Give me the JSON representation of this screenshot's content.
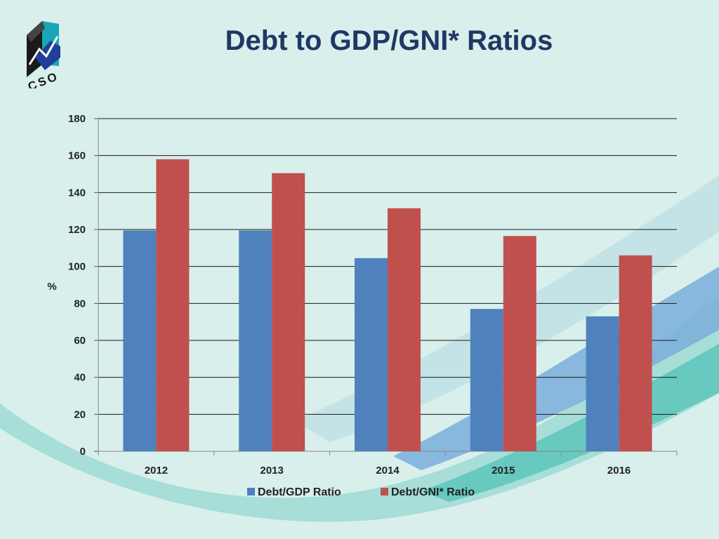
{
  "slide": {
    "title": "Debt to GDP/GNI* Ratios",
    "logo_text": "CSO"
  },
  "colors": {
    "background": "#d8efec",
    "title": "#1f3864",
    "series_gdp": "#4f81bd",
    "series_gni": "#c0504d",
    "gridline": "#1a1a1a"
  },
  "chart_data": {
    "type": "bar",
    "title": "",
    "xlabel": "",
    "ylabel": "%",
    "ylim": [
      0,
      180
    ],
    "yticks": [
      0,
      20,
      40,
      60,
      80,
      100,
      120,
      140,
      160,
      180
    ],
    "grid": true,
    "legend_position": "bottom",
    "categories": [
      "2012",
      "2013",
      "2014",
      "2015",
      "2016"
    ],
    "series": [
      {
        "name": "Debt/GDP Ratio",
        "color": "#4f81bd",
        "values": [
          119.5,
          119.5,
          104.5,
          77,
          73
        ]
      },
      {
        "name": "Debt/GNI* Ratio",
        "color": "#c0504d",
        "values": [
          158,
          150.5,
          131.5,
          116.5,
          106
        ]
      }
    ]
  }
}
